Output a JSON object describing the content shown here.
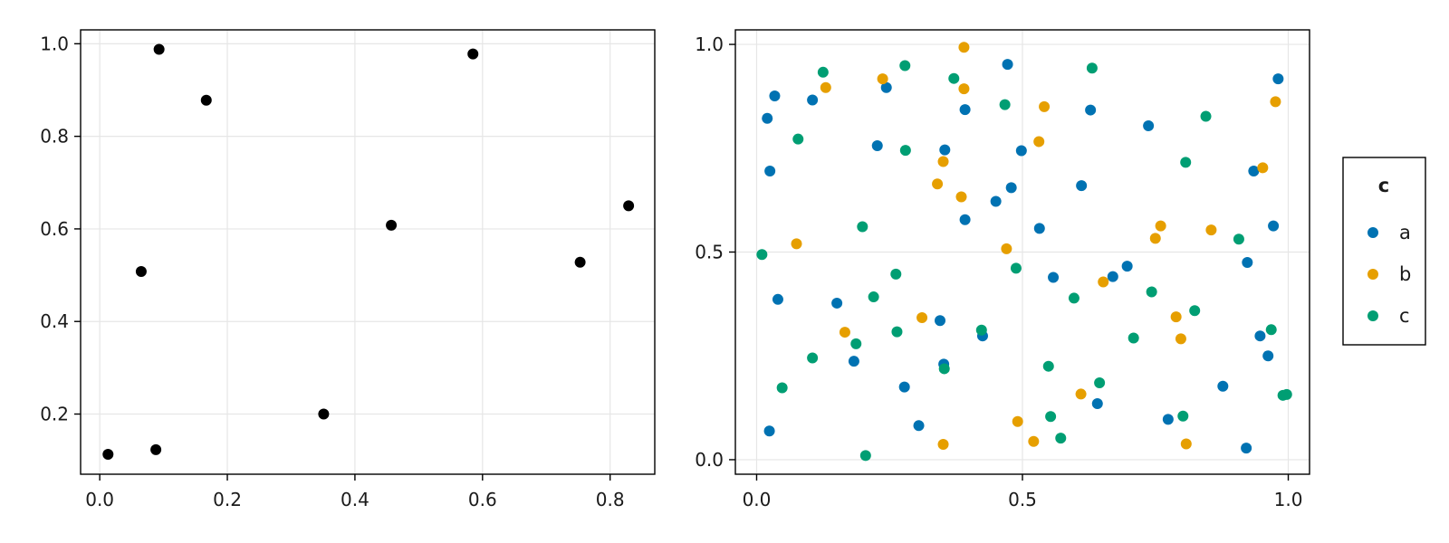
{
  "chart_data": [
    {
      "type": "scatter",
      "title": "",
      "xlabel": "",
      "ylabel": "",
      "xlim": [
        -0.03,
        0.87
      ],
      "ylim": [
        0.07,
        1.03
      ],
      "xticks": [
        0.0,
        0.2,
        0.4,
        0.6,
        0.8
      ],
      "xtick_labels": [
        "0.0",
        "0.2",
        "0.4",
        "0.6",
        "0.8"
      ],
      "yticks": [
        0.2,
        0.4,
        0.6,
        0.8,
        1.0
      ],
      "ytick_labels": [
        "0.2",
        "0.4",
        "0.6",
        "0.8",
        "1.0"
      ],
      "grid": true,
      "series": [
        {
          "color": "#000000",
          "x": [
            0.013,
            0.065,
            0.088,
            0.093,
            0.167,
            0.351,
            0.457,
            0.585,
            0.753,
            0.829
          ],
          "y": [
            0.113,
            0.508,
            0.123,
            0.988,
            0.878,
            0.2,
            0.608,
            0.978,
            0.528,
            0.65
          ]
        }
      ]
    },
    {
      "type": "scatter",
      "title": "",
      "xlabel": "",
      "ylabel": "",
      "xlim": [
        -0.04,
        1.04
      ],
      "ylim": [
        -0.035,
        1.035
      ],
      "xticks": [
        0.0,
        0.5,
        1.0
      ],
      "xtick_labels": [
        "0.0",
        "0.5",
        "1.0"
      ],
      "yticks": [
        0.0,
        0.5,
        1.0
      ],
      "ytick_labels": [
        "0.0",
        "0.5",
        "1.0"
      ],
      "grid": true,
      "legend": {
        "title": "c",
        "placement": "right"
      },
      "series": [
        {
          "name": "a",
          "color": "#0072b2",
          "x": [
            0.02,
            0.034,
            0.025,
            0.04,
            0.105,
            0.024,
            0.151,
            0.183,
            0.227,
            0.244,
            0.278,
            0.305,
            0.345,
            0.352,
            0.354,
            0.392,
            0.392,
            0.425,
            0.45,
            0.472,
            0.479,
            0.498,
            0.532,
            0.558,
            0.611,
            0.628,
            0.641,
            0.67,
            0.697,
            0.737,
            0.774,
            0.877,
            0.921,
            0.923,
            0.935,
            0.947,
            0.962,
            0.972,
            0.981
          ],
          "y": [
            0.822,
            0.876,
            0.695,
            0.386,
            0.866,
            0.069,
            0.377,
            0.237,
            0.756,
            0.896,
            0.175,
            0.082,
            0.335,
            0.23,
            0.746,
            0.843,
            0.578,
            0.298,
            0.622,
            0.952,
            0.655,
            0.744,
            0.557,
            0.439,
            0.66,
            0.842,
            0.135,
            0.441,
            0.466,
            0.804,
            0.097,
            0.177,
            0.028,
            0.475,
            0.695,
            0.298,
            0.25,
            0.563,
            0.917
          ]
        },
        {
          "name": "b",
          "color": "#e69f00",
          "x": [
            0.075,
            0.13,
            0.166,
            0.237,
            0.311,
            0.34,
            0.351,
            0.351,
            0.385,
            0.39,
            0.39,
            0.47,
            0.491,
            0.521,
            0.531,
            0.541,
            0.61,
            0.652,
            0.75,
            0.76,
            0.789,
            0.798,
            0.808,
            0.855,
            0.952,
            0.976
          ],
          "y": [
            0.52,
            0.896,
            0.307,
            0.917,
            0.342,
            0.664,
            0.718,
            0.037,
            0.633,
            0.893,
            0.993,
            0.508,
            0.092,
            0.044,
            0.766,
            0.85,
            0.158,
            0.428,
            0.533,
            0.563,
            0.344,
            0.291,
            0.038,
            0.553,
            0.703,
            0.862
          ]
        },
        {
          "name": "c",
          "color": "#009e73",
          "x": [
            0.01,
            0.048,
            0.078,
            0.105,
            0.125,
            0.199,
            0.205,
            0.22,
            0.187,
            0.262,
            0.264,
            0.279,
            0.28,
            0.353,
            0.371,
            0.423,
            0.467,
            0.488,
            0.549,
            0.553,
            0.572,
            0.597,
            0.631,
            0.645,
            0.709,
            0.743,
            0.802,
            0.807,
            0.824,
            0.845,
            0.907,
            0.968,
            0.99,
            0.997
          ],
          "y": [
            0.494,
            0.173,
            0.772,
            0.245,
            0.933,
            0.561,
            0.01,
            0.392,
            0.279,
            0.447,
            0.308,
            0.949,
            0.745,
            0.219,
            0.918,
            0.312,
            0.855,
            0.461,
            0.225,
            0.104,
            0.052,
            0.389,
            0.943,
            0.185,
            0.293,
            0.404,
            0.105,
            0.716,
            0.359,
            0.827,
            0.531,
            0.313,
            0.155,
            0.157
          ]
        }
      ]
    }
  ]
}
